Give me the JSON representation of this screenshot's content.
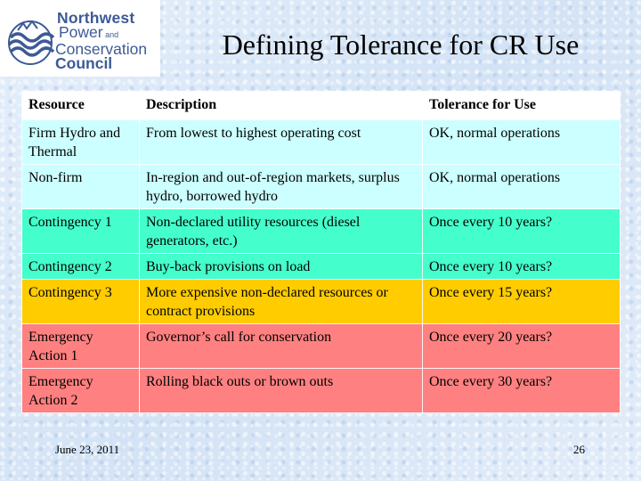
{
  "logo": {
    "line1": "Northwest",
    "line2": "Power",
    "line2_small": " and",
    "line3": "Conservation",
    "line4": "Council",
    "colors": {
      "text": "#3d5a96",
      "mark": "#3d5a96"
    },
    "icon": "council-emblem-icon"
  },
  "title": "Defining Tolerance for CR Use",
  "table": {
    "headers": [
      "Resource",
      "Description",
      "Tolerance for Use"
    ],
    "rows": [
      {
        "resource": "Firm Hydro and Thermal",
        "description": "From lowest to highest operating cost",
        "tolerance": "OK, normal operations",
        "color": "#ccffff"
      },
      {
        "resource": "Non-firm",
        "description": "In-region and out-of-region markets, surplus hydro, borrowed hydro",
        "tolerance": "OK, normal operations",
        "color": "#ccffff"
      },
      {
        "resource": "Contingency 1",
        "description": "Non-declared utility resources (diesel generators, etc.)",
        "tolerance": "Once every 10 years?",
        "color": "#44ffcc"
      },
      {
        "resource": "Contingency 2",
        "description": "Buy-back provisions on load",
        "tolerance": "Once every 10 years?",
        "color": "#44ffcc"
      },
      {
        "resource": "Contingency 3",
        "description": "More expensive non-declared resources or contract provisions",
        "tolerance": "Once every 15 years?",
        "color": "#ffcc00"
      },
      {
        "resource": "Emergency Action 1",
        "description": "Governor’s call for conservation",
        "tolerance": "Once every 20 years?",
        "color": "#ff8080"
      },
      {
        "resource": "Emergency Action 2",
        "description": "Rolling black outs or brown outs",
        "tolerance": "Once every 30 years?",
        "color": "#ff8080"
      }
    ]
  },
  "footer": {
    "date": "June 23, 2011",
    "page_number": "26"
  }
}
